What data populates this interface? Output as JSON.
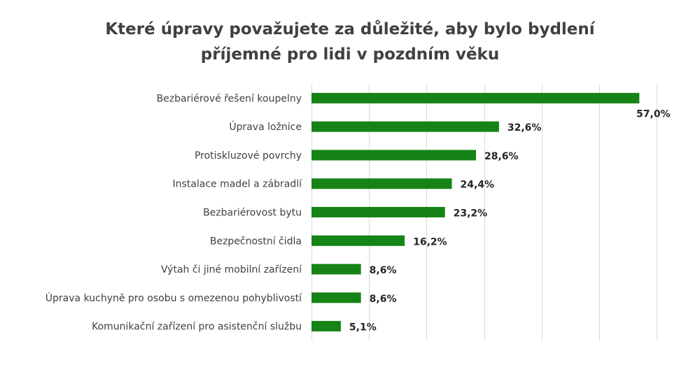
{
  "chart_data": {
    "type": "bar",
    "orientation": "horizontal",
    "title_lines": [
      "Které úpravy považujete za důležité, aby bylo bydlení",
      "příjemné pro lidi v pozdním věku"
    ],
    "categories": [
      "Bezbariérové řešení koupelny",
      "Úprava ložnice",
      "Protiskluzové povrchy",
      "Instalace madel a zábradlí",
      "Bezbariérovost bytu",
      "Bezpečnostní čidla",
      "Výtah či jiné mobilní zařízení",
      "Úprava kuchyně pro osobu s omezenou pohyblivostí",
      "Komunikační zařízení pro asistenční službu"
    ],
    "values": [
      57.0,
      32.6,
      28.6,
      24.4,
      23.2,
      16.2,
      8.6,
      8.6,
      5.1
    ],
    "value_labels": [
      "57,0%",
      "32,6%",
      "28,6%",
      "24,4%",
      "23,2%",
      "16,2%",
      "8,6%",
      "8,6%",
      "5,1%"
    ],
    "xlim": [
      0,
      60
    ],
    "grid": true,
    "bar_color": "#168316"
  }
}
